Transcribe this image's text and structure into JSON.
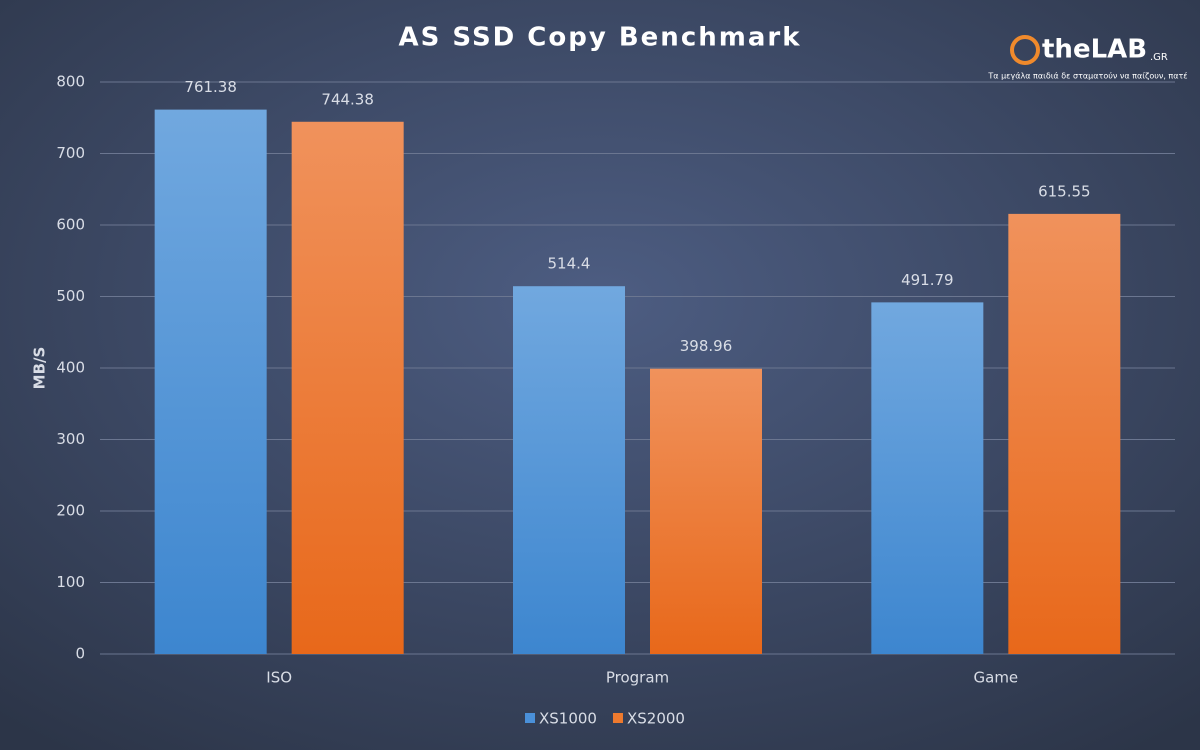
{
  "chart_data": {
    "type": "bar",
    "title": "AS SSD Copy Benchmark",
    "y_label": "MB/S",
    "logo": "theLAB",
    "logo_suffix": ".GR",
    "tagline": "Τα μεγάλα παιδιά δε σταματούν να παίζουν, πατέ",
    "categories": [
      "ISO",
      "Program",
      "Game"
    ],
    "series": [
      {
        "name": "XS1000",
        "color": "#4a90d9",
        "values": [
          761.38,
          514.4,
          491.79
        ]
      },
      {
        "name": "XS2000",
        "color": "#ee7a2e",
        "values": [
          744.38,
          398.96,
          615.55
        ]
      }
    ],
    "ylim": [
      0,
      800
    ],
    "yticks": [
      0,
      100,
      200,
      300,
      400,
      500,
      600,
      700,
      800
    ],
    "grid": true
  }
}
